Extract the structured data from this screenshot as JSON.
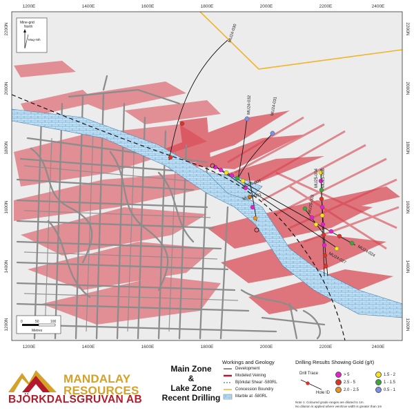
{
  "map": {
    "x_ticks": [
      "1200E",
      "1400E",
      "1600E",
      "1800E",
      "2000E",
      "2200E",
      "2400E"
    ],
    "y_ticks": [
      "2200N",
      "2000N",
      "1800N",
      "1600N",
      "1400N",
      "1200N"
    ],
    "north_arrow": {
      "label1": "Mine-grid",
      "label2": "North",
      "label3": "Mag-Nth"
    },
    "scale_bar": {
      "labels": [
        "0",
        "50",
        "100"
      ],
      "unit": "Metres"
    },
    "holes": [
      "MU24-030",
      "MU24-032",
      "MU24-031",
      "MU25-006",
      "MU25-001",
      "MU25-008",
      "MU25-004",
      "MU25-003",
      "MU24-027",
      "MU24-024"
    ],
    "colors": {
      "mine_workings": "#8c8c8c",
      "veining": "#d9434f",
      "marble": "#bfe0f5",
      "concession": "#f0b429",
      "background": "#e8e8e8"
    }
  },
  "branding": {
    "logo_line1": "MANDALAY",
    "logo_line2": "RESOURCES",
    "logo_line3": "BJÖRKDALSGRUVAN AB"
  },
  "title": {
    "line1": "Main Zone",
    "line2": "&",
    "line3": "Lake Zone",
    "line4": "Recent Drilling"
  },
  "legend": {
    "workings_title": "Workings and Geology",
    "items": [
      "Development",
      "Modeled Veining",
      "Björkdal Shear -580RL",
      "Concession Boundry",
      "Marble at -580RL"
    ],
    "drilling_title": "Drilling Results Showing Gold (g/t)",
    "drill_trace_label": "Drill Trace",
    "hole_label": "Hole ID",
    "grades": [
      {
        "label": "> 5",
        "color": "#e81ecf"
      },
      {
        "label": "2.5 - 5",
        "color": "#e23026"
      },
      {
        "label": "2.0 - 2.5",
        "color": "#f0901e"
      },
      {
        "label": "1.5 - 2",
        "color": "#f4e61a"
      },
      {
        "label": "1 - 1.5",
        "color": "#3aa83a"
      },
      {
        "label": "0.5 - 1",
        "color": "#7f8ee8"
      }
    ],
    "note_line1": "Note 1: Coloured grade ranges are diluted to 1m.",
    "note_line2": "No dilution is applied where vein/true width is greater than 1m"
  }
}
